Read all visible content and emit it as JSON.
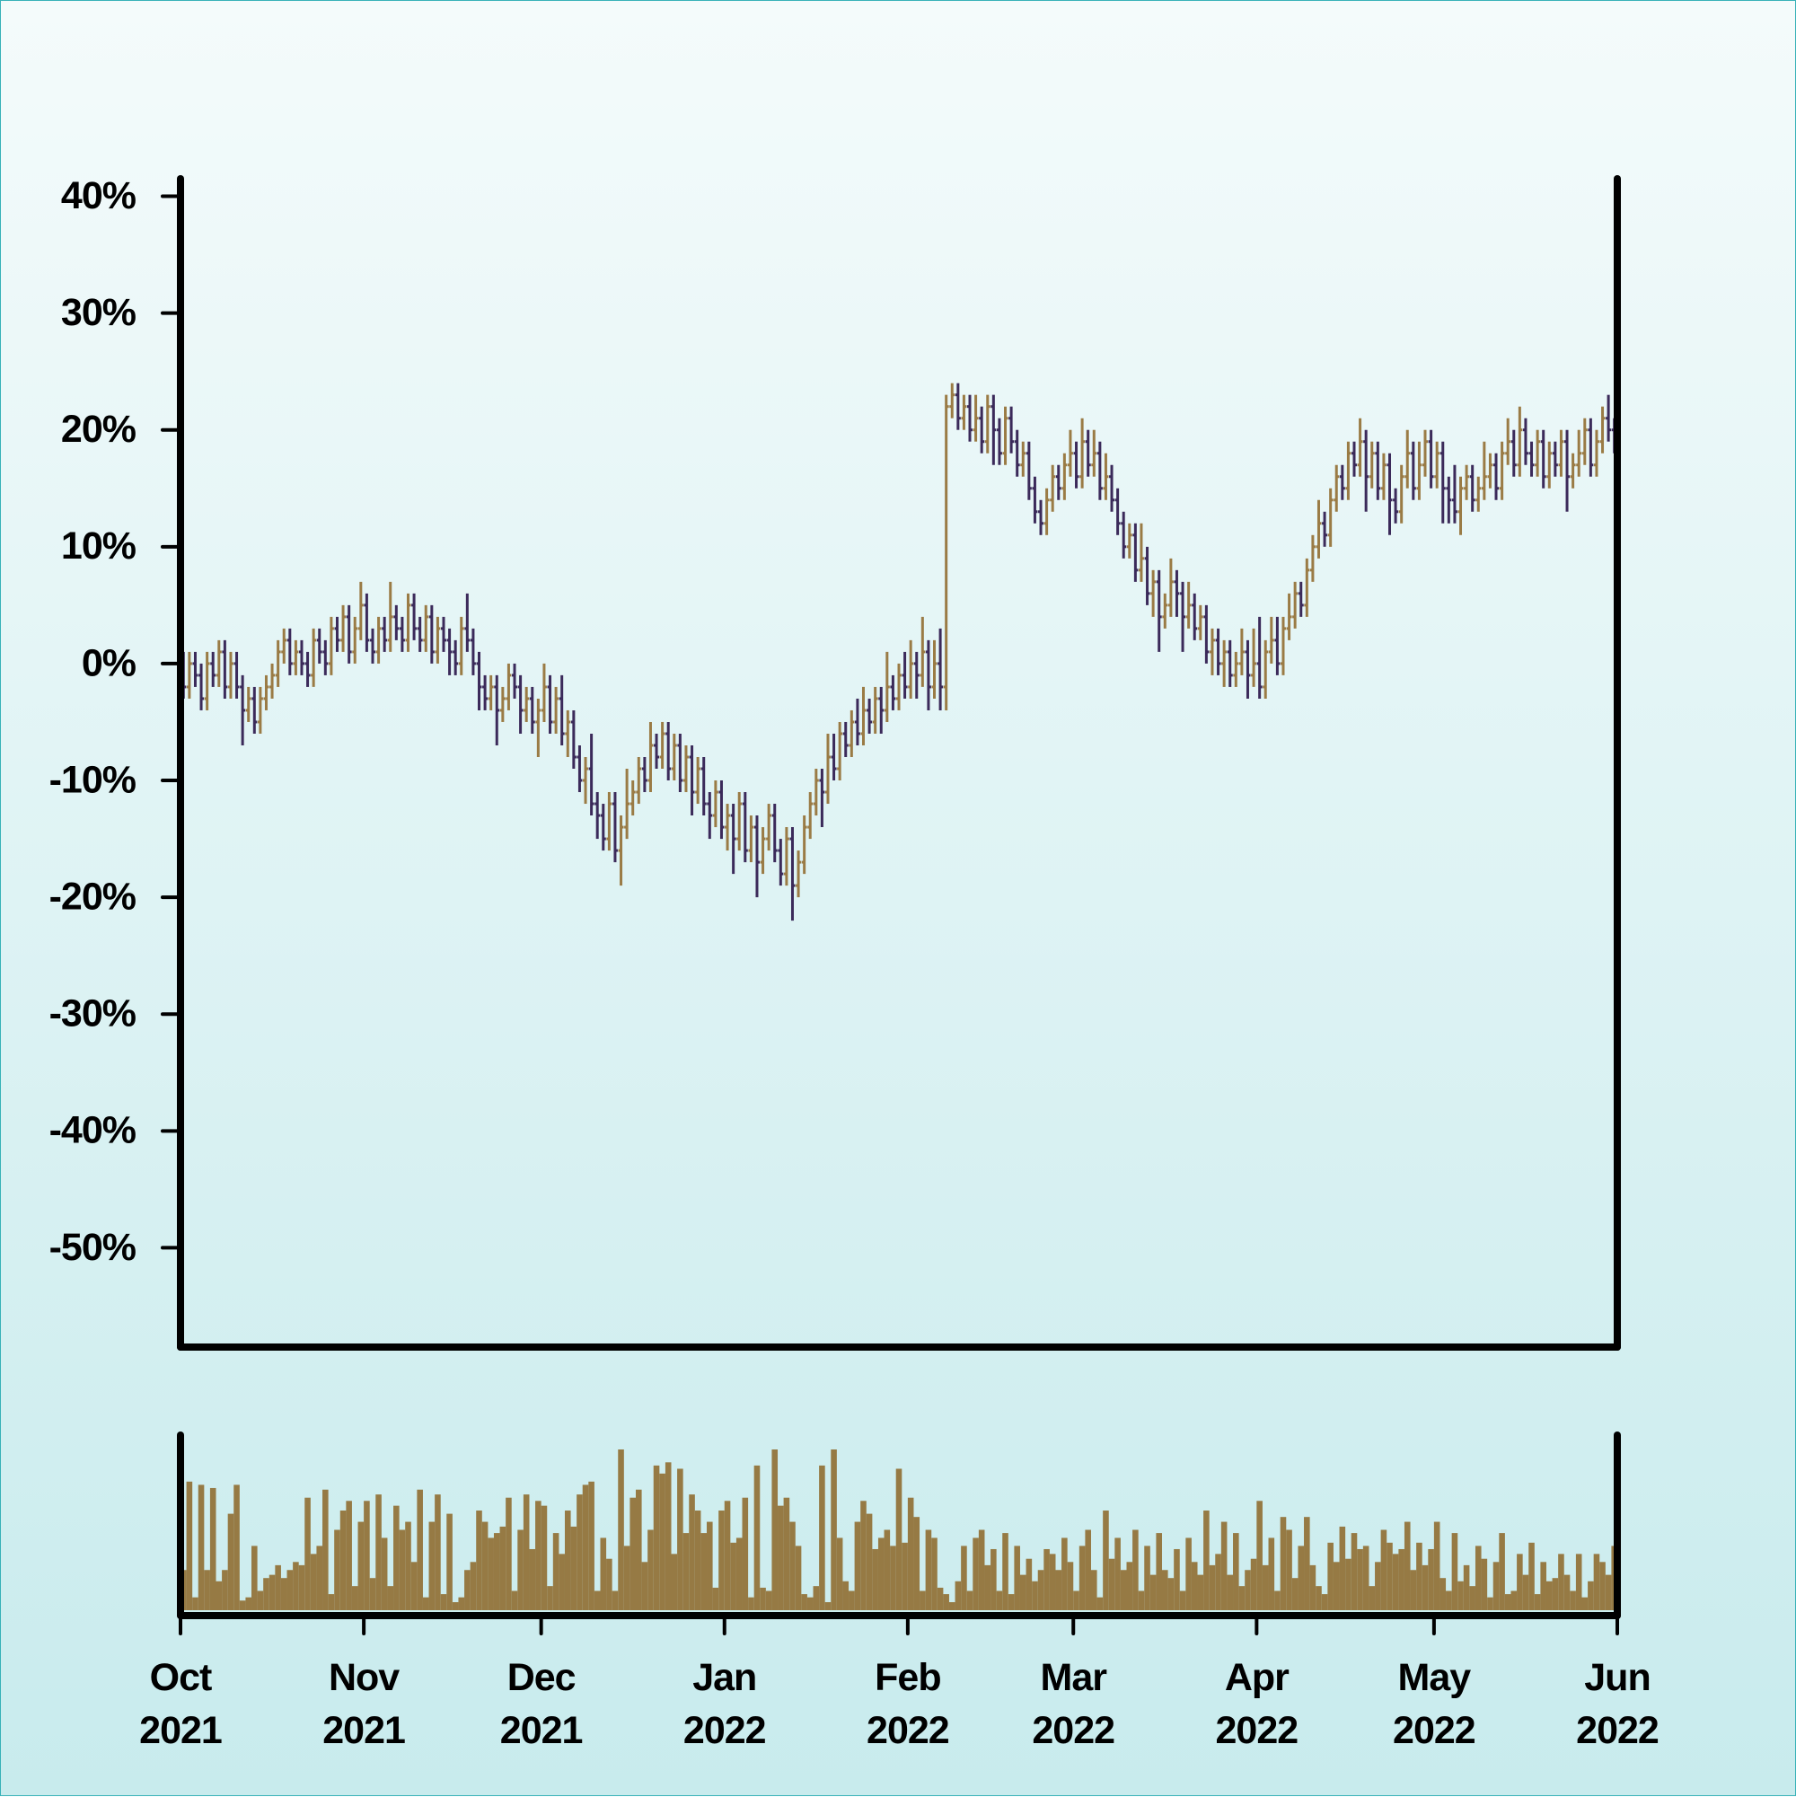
{
  "chart_data": {
    "type": "ohlc",
    "ylim": [
      -58.5,
      41.5
    ],
    "yticks": [
      {
        "value": -50,
        "label": "-50%"
      },
      {
        "value": -40,
        "label": "-40%"
      },
      {
        "value": -30,
        "label": "-30%"
      },
      {
        "value": -20,
        "label": "-20%"
      },
      {
        "value": -10,
        "label": "-10%"
      },
      {
        "value": 0,
        "label": "0%"
      },
      {
        "value": 10,
        "label": "10%"
      },
      {
        "value": 20,
        "label": "20%"
      },
      {
        "value": 30,
        "label": "30%"
      },
      {
        "value": 40,
        "label": "40%"
      }
    ],
    "xlim": [
      0,
      243
    ],
    "xticks": [
      {
        "value": 0,
        "label": "Oct 2021"
      },
      {
        "value": 31,
        "label": "Nov 2021"
      },
      {
        "value": 61,
        "label": "Dec 2021"
      },
      {
        "value": 92,
        "label": "Jan 2022"
      },
      {
        "value": 123,
        "label": "Feb 2022"
      },
      {
        "value": 151,
        "label": "Mar 2022"
      },
      {
        "value": 182,
        "label": "Apr 2022"
      },
      {
        "value": 212,
        "label": "May 2022"
      },
      {
        "value": 243,
        "label": "Jun 2022"
      }
    ],
    "up_color": "#9a7b45",
    "down_color": "#3b2a5a",
    "ohlc": [
      [
        0,
        1,
        -3,
        -2
      ],
      [
        -2,
        1,
        -3,
        0
      ],
      [
        0,
        1,
        -2,
        -1
      ],
      [
        -1,
        0,
        -4,
        -3
      ],
      [
        -3,
        1,
        -4,
        0
      ],
      [
        0,
        1,
        -2,
        -1
      ],
      [
        -1,
        2,
        -2,
        1
      ],
      [
        1,
        2,
        -3,
        -2
      ],
      [
        -2,
        1,
        -3,
        0
      ],
      [
        0,
        1,
        -3,
        -2
      ],
      [
        -2,
        -1,
        -7,
        -4
      ],
      [
        -4,
        -2,
        -5,
        -3
      ],
      [
        -3,
        -2,
        -6,
        -5
      ],
      [
        -5,
        -2,
        -6,
        -3
      ],
      [
        -3,
        -1,
        -4,
        -2
      ],
      [
        -2,
        0,
        -3,
        -1
      ],
      [
        -1,
        2,
        -2,
        1
      ],
      [
        1,
        3,
        0,
        2
      ],
      [
        2,
        3,
        -1,
        0
      ],
      [
        0,
        2,
        -1,
        1
      ],
      [
        1,
        2,
        -1,
        0
      ],
      [
        0,
        1,
        -2,
        -1
      ],
      [
        -1,
        3,
        -2,
        2
      ],
      [
        2,
        3,
        0,
        1
      ],
      [
        1,
        2,
        -1,
        0
      ],
      [
        0,
        4,
        -1,
        3
      ],
      [
        3,
        4,
        1,
        2
      ],
      [
        2,
        5,
        1,
        4
      ],
      [
        4,
        5,
        0,
        1
      ],
      [
        1,
        4,
        0,
        3
      ],
      [
        3,
        7,
        2,
        5
      ],
      [
        5,
        6,
        1,
        2
      ],
      [
        2,
        3,
        0,
        1
      ],
      [
        1,
        4,
        0,
        3
      ],
      [
        3,
        4,
        1,
        2
      ],
      [
        2,
        7,
        1,
        4
      ],
      [
        4,
        5,
        2,
        3
      ],
      [
        3,
        4,
        1,
        2
      ],
      [
        2,
        6,
        1,
        5
      ],
      [
        5,
        6,
        2,
        3
      ],
      [
        3,
        4,
        1,
        2
      ],
      [
        2,
        5,
        1,
        4
      ],
      [
        4,
        5,
        0,
        1
      ],
      [
        1,
        4,
        0,
        3
      ],
      [
        3,
        4,
        1,
        2
      ],
      [
        2,
        3,
        -1,
        1
      ],
      [
        1,
        2,
        -1,
        0
      ],
      [
        0,
        4,
        -1,
        3
      ],
      [
        3,
        6,
        1,
        2
      ],
      [
        2,
        3,
        -1,
        0
      ],
      [
        0,
        1,
        -4,
        -2
      ],
      [
        -2,
        -1,
        -4,
        -3
      ],
      [
        -3,
        -1,
        -4,
        -2
      ],
      [
        -2,
        -1,
        -7,
        -4
      ],
      [
        -4,
        -2,
        -5,
        -3
      ],
      [
        -3,
        0,
        -4,
        -1
      ],
      [
        -1,
        0,
        -3,
        -2
      ],
      [
        -2,
        -1,
        -6,
        -4
      ],
      [
        -4,
        -2,
        -5,
        -3
      ],
      [
        -3,
        -2,
        -6,
        -5
      ],
      [
        -5,
        -3,
        -8,
        -4
      ],
      [
        -4,
        0,
        -5,
        -2
      ],
      [
        -2,
        -1,
        -6,
        -5
      ],
      [
        -5,
        -2,
        -6,
        -3
      ],
      [
        -3,
        -1,
        -7,
        -6
      ],
      [
        -6,
        -4,
        -8,
        -5
      ],
      [
        -5,
        -4,
        -9,
        -8
      ],
      [
        -8,
        -7,
        -11,
        -10
      ],
      [
        -10,
        -8,
        -12,
        -9
      ],
      [
        -9,
        -6,
        -13,
        -12
      ],
      [
        -12,
        -11,
        -15,
        -13
      ],
      [
        -13,
        -12,
        -16,
        -15
      ],
      [
        -15,
        -11,
        -16,
        -12
      ],
      [
        -12,
        -11,
        -17,
        -16
      ],
      [
        -16,
        -13,
        -19,
        -14
      ],
      [
        -14,
        -9,
        -15,
        -12
      ],
      [
        -12,
        -10,
        -13,
        -11
      ],
      [
        -11,
        -8,
        -12,
        -9
      ],
      [
        -9,
        -8,
        -11,
        -10
      ],
      [
        -10,
        -5,
        -11,
        -7
      ],
      [
        -7,
        -6,
        -9,
        -8
      ],
      [
        -8,
        -5,
        -9,
        -6
      ],
      [
        -6,
        -5,
        -10,
        -9
      ],
      [
        -9,
        -6,
        -10,
        -7
      ],
      [
        -7,
        -6,
        -11,
        -10
      ],
      [
        -10,
        -7,
        -11,
        -8
      ],
      [
        -8,
        -7,
        -13,
        -11
      ],
      [
        -11,
        -8,
        -12,
        -9
      ],
      [
        -9,
        -8,
        -13,
        -12
      ],
      [
        -12,
        -11,
        -15,
        -13
      ],
      [
        -13,
        -10,
        -14,
        -11
      ],
      [
        -11,
        -10,
        -15,
        -14
      ],
      [
        -14,
        -12,
        -16,
        -13
      ],
      [
        -13,
        -12,
        -18,
        -15
      ],
      [
        -15,
        -11,
        -16,
        -12
      ],
      [
        -12,
        -11,
        -17,
        -16
      ],
      [
        -16,
        -13,
        -17,
        -14
      ],
      [
        -14,
        -13,
        -20,
        -17
      ],
      [
        -17,
        -14,
        -18,
        -15
      ],
      [
        -15,
        -12,
        -16,
        -13
      ],
      [
        -13,
        -12,
        -17,
        -16
      ],
      [
        -16,
        -15,
        -19,
        -18
      ],
      [
        -18,
        -14,
        -19,
        -15
      ],
      [
        -15,
        -14,
        -22,
        -19
      ],
      [
        -19,
        -16,
        -20,
        -17
      ],
      [
        -17,
        -13,
        -18,
        -14
      ],
      [
        -14,
        -11,
        -15,
        -12
      ],
      [
        -12,
        -9,
        -13,
        -10
      ],
      [
        -10,
        -9,
        -14,
        -11
      ],
      [
        -11,
        -6,
        -12,
        -8
      ],
      [
        -8,
        -6,
        -10,
        -9
      ],
      [
        -9,
        -5,
        -10,
        -6
      ],
      [
        -6,
        -5,
        -8,
        -7
      ],
      [
        -7,
        -4,
        -8,
        -5
      ],
      [
        -5,
        -3,
        -7,
        -6
      ],
      [
        -6,
        -2,
        -7,
        -4
      ],
      [
        -4,
        -3,
        -6,
        -5
      ],
      [
        -5,
        -2,
        -6,
        -3
      ],
      [
        -3,
        -2,
        -6,
        -4
      ],
      [
        -4,
        1,
        -5,
        -2
      ],
      [
        -2,
        -1,
        -4,
        -3
      ],
      [
        -3,
        0,
        -4,
        -1
      ],
      [
        -1,
        1,
        -3,
        -2
      ],
      [
        -2,
        2,
        -3,
        0
      ],
      [
        0,
        1,
        -3,
        -1
      ],
      [
        -1,
        4,
        -2,
        1
      ],
      [
        1,
        2,
        -4,
        -2
      ],
      [
        -2,
        2,
        -3,
        0
      ],
      [
        0,
        3,
        -4,
        -2
      ],
      [
        -2,
        23,
        -4,
        22
      ],
      [
        22,
        24,
        21,
        23
      ],
      [
        23,
        24,
        20,
        21
      ],
      [
        21,
        23,
        20,
        22
      ],
      [
        22,
        23,
        19,
        20
      ],
      [
        20,
        23,
        19,
        21
      ],
      [
        21,
        22,
        18,
        19
      ],
      [
        19,
        23,
        18,
        22
      ],
      [
        22,
        23,
        17,
        20
      ],
      [
        20,
        21,
        17,
        18
      ],
      [
        18,
        22,
        17,
        21
      ],
      [
        21,
        22,
        18,
        19
      ],
      [
        19,
        20,
        16,
        17
      ],
      [
        17,
        19,
        16,
        18
      ],
      [
        18,
        19,
        14,
        15
      ],
      [
        15,
        16,
        12,
        13
      ],
      [
        13,
        14,
        11,
        12
      ],
      [
        12,
        15,
        11,
        14
      ],
      [
        14,
        17,
        13,
        16
      ],
      [
        16,
        17,
        14,
        15
      ],
      [
        15,
        18,
        14,
        17
      ],
      [
        17,
        20,
        16,
        18
      ],
      [
        18,
        19,
        15,
        16
      ],
      [
        16,
        21,
        15,
        19
      ],
      [
        19,
        20,
        16,
        17
      ],
      [
        17,
        20,
        16,
        18
      ],
      [
        18,
        19,
        14,
        15
      ],
      [
        15,
        18,
        14,
        16
      ],
      [
        16,
        17,
        13,
        14
      ],
      [
        14,
        15,
        11,
        12
      ],
      [
        12,
        13,
        9,
        10
      ],
      [
        10,
        12,
        9,
        11
      ],
      [
        11,
        12,
        7,
        8
      ],
      [
        8,
        12,
        7,
        9
      ],
      [
        9,
        10,
        5,
        6
      ],
      [
        6,
        8,
        4,
        7
      ],
      [
        7,
        8,
        1,
        4
      ],
      [
        4,
        6,
        3,
        5
      ],
      [
        5,
        9,
        4,
        7
      ],
      [
        7,
        8,
        4,
        6
      ],
      [
        6,
        7,
        1,
        4
      ],
      [
        4,
        7,
        3,
        5
      ],
      [
        5,
        6,
        2,
        3
      ],
      [
        3,
        5,
        2,
        4
      ],
      [
        4,
        5,
        0,
        1
      ],
      [
        1,
        3,
        -1,
        2
      ],
      [
        2,
        3,
        -1,
        0
      ],
      [
        0,
        2,
        -2,
        1
      ],
      [
        1,
        2,
        -2,
        -1
      ],
      [
        -1,
        1,
        -2,
        0
      ],
      [
        0,
        3,
        -1,
        1
      ],
      [
        1,
        2,
        -3,
        -1
      ],
      [
        -1,
        3,
        -2,
        0
      ],
      [
        0,
        4,
        -3,
        -2
      ],
      [
        -2,
        2,
        -3,
        1
      ],
      [
        1,
        4,
        0,
        2
      ],
      [
        2,
        4,
        -1,
        0
      ],
      [
        0,
        4,
        -1,
        3
      ],
      [
        3,
        6,
        2,
        4
      ],
      [
        4,
        7,
        3,
        6
      ],
      [
        6,
        7,
        4,
        5
      ],
      [
        5,
        9,
        4,
        8
      ],
      [
        8,
        11,
        7,
        10
      ],
      [
        10,
        14,
        9,
        12
      ],
      [
        12,
        13,
        10,
        11
      ],
      [
        11,
        15,
        10,
        14
      ],
      [
        14,
        17,
        13,
        16
      ],
      [
        16,
        17,
        14,
        15
      ],
      [
        15,
        19,
        14,
        18
      ],
      [
        18,
        19,
        16,
        17
      ],
      [
        17,
        21,
        16,
        19
      ],
      [
        19,
        20,
        13,
        16
      ],
      [
        16,
        19,
        15,
        18
      ],
      [
        18,
        19,
        14,
        15
      ],
      [
        15,
        18,
        14,
        17
      ],
      [
        17,
        18,
        11,
        14
      ],
      [
        14,
        15,
        12,
        13
      ],
      [
        13,
        17,
        12,
        16
      ],
      [
        16,
        20,
        15,
        18
      ],
      [
        18,
        19,
        14,
        15
      ],
      [
        15,
        19,
        14,
        17
      ],
      [
        17,
        20,
        16,
        19
      ],
      [
        19,
        20,
        15,
        16
      ],
      [
        16,
        19,
        15,
        18
      ],
      [
        18,
        19,
        12,
        15
      ],
      [
        15,
        16,
        12,
        14
      ],
      [
        14,
        17,
        12,
        13
      ],
      [
        13,
        16,
        11,
        15
      ],
      [
        15,
        17,
        14,
        16
      ],
      [
        16,
        17,
        13,
        14
      ],
      [
        14,
        16,
        13,
        15
      ],
      [
        15,
        19,
        14,
        16
      ],
      [
        16,
        18,
        15,
        17
      ],
      [
        17,
        18,
        14,
        15
      ],
      [
        15,
        19,
        14,
        18
      ],
      [
        18,
        21,
        17,
        19
      ],
      [
        19,
        20,
        16,
        17
      ],
      [
        17,
        22,
        16,
        20
      ],
      [
        20,
        21,
        17,
        18
      ],
      [
        18,
        19,
        16,
        17
      ],
      [
        17,
        20,
        16,
        19
      ],
      [
        19,
        20,
        15,
        16
      ],
      [
        16,
        19,
        15,
        18
      ],
      [
        18,
        19,
        16,
        17
      ],
      [
        17,
        20,
        16,
        19
      ],
      [
        19,
        20,
        13,
        16
      ],
      [
        16,
        18,
        15,
        17
      ],
      [
        17,
        20,
        16,
        18
      ],
      [
        18,
        21,
        17,
        20
      ],
      [
        20,
        21,
        16,
        17
      ],
      [
        17,
        20,
        16,
        19
      ],
      [
        19,
        22,
        18,
        21
      ],
      [
        21,
        23,
        19,
        20
      ],
      [
        20,
        21,
        18,
        19
      ]
    ],
    "volume": {
      "color": "#967a44",
      "ylim": [
        0,
        100
      ],
      "values": [
        25,
        80,
        8,
        78,
        25,
        76,
        18,
        25,
        60,
        78,
        6,
        8,
        40,
        12,
        20,
        22,
        28,
        20,
        25,
        30,
        28,
        70,
        35,
        40,
        75,
        10,
        50,
        62,
        68,
        15,
        55,
        68,
        20,
        72,
        45,
        15,
        65,
        50,
        55,
        30,
        75,
        8,
        55,
        72,
        10,
        60,
        5,
        8,
        25,
        30,
        62,
        55,
        45,
        48,
        52,
        70,
        12,
        50,
        72,
        38,
        68,
        65,
        15,
        48,
        35,
        62,
        52,
        72,
        78,
        80,
        12,
        45,
        32,
        12,
        100,
        40,
        70,
        75,
        30,
        50,
        90,
        85,
        92,
        35,
        88,
        48,
        72,
        62,
        48,
        55,
        14,
        62,
        68,
        42,
        45,
        70,
        8,
        90,
        14,
        12,
        100,
        65,
        70,
        55,
        40,
        10,
        8,
        15,
        90,
        5,
        100,
        45,
        18,
        12,
        55,
        68,
        60,
        38,
        45,
        50,
        40,
        88,
        42,
        70,
        58,
        12,
        50,
        45,
        14,
        10,
        5,
        18,
        40,
        12,
        45,
        50,
        28,
        38,
        12,
        48,
        10,
        40,
        22,
        32,
        18,
        25,
        38,
        35,
        25,
        45,
        30,
        12,
        40,
        50,
        25,
        8,
        62,
        32,
        45,
        25,
        30,
        50,
        12,
        40,
        22,
        48,
        25,
        20,
        38,
        12,
        45,
        30,
        22,
        62,
        28,
        35,
        55,
        22,
        48,
        15,
        25,
        32,
        68,
        28,
        45,
        12,
        58,
        50,
        20,
        40,
        58,
        28,
        15,
        10,
        42,
        30,
        52,
        32,
        48,
        38,
        40,
        15,
        30,
        50,
        42,
        35,
        38,
        55,
        25,
        42,
        28,
        38,
        55,
        20,
        12,
        48,
        18,
        28,
        15,
        40,
        32,
        8,
        30,
        48,
        10,
        12,
        35,
        22,
        42,
        10,
        30,
        18,
        20,
        35,
        22,
        12,
        35,
        8,
        18,
        35,
        30,
        22,
        40
      ]
    }
  }
}
